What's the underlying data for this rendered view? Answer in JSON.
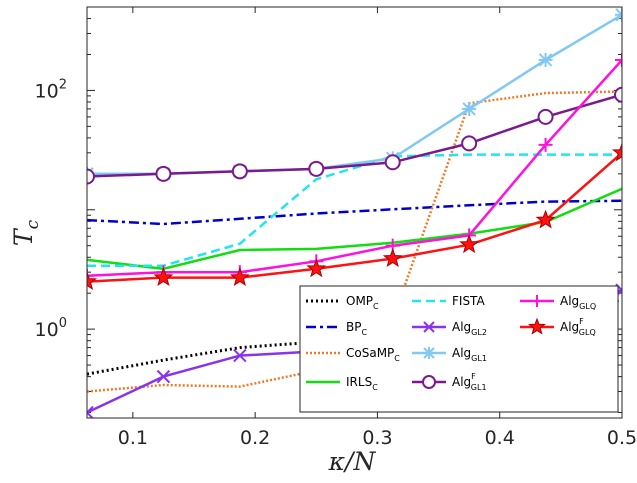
{
  "chart_data": {
    "type": "line",
    "xlabel": "κ/N",
    "ylabel": "T",
    "ylabel_sub": "c",
    "yscale": "log",
    "xlim": [
      0.0625,
      0.5
    ],
    "ylim": [
      0.18,
      500
    ],
    "x": [
      0.0625,
      0.125,
      0.1875,
      0.25,
      0.3125,
      0.375,
      0.4375,
      0.5
    ],
    "xticks": [
      0.1,
      0.2,
      0.3,
      0.4,
      0.5
    ],
    "xtick_labels": [
      "0.1",
      "0.2",
      "0.3",
      "0.4",
      "0.5"
    ],
    "yticks": [
      1,
      100
    ],
    "ytick_labels": [
      {
        "base": "10",
        "exp": "0"
      },
      {
        "base": "10",
        "exp": "2"
      }
    ],
    "grid": false,
    "legend": {
      "placement": "bottom-right",
      "columns": 3
    },
    "series": [
      {
        "name": "OMP",
        "sub": "C",
        "sup": "",
        "color": "#000000",
        "dash": "2,3",
        "width": 3,
        "marker": "none",
        "values": [
          0.42,
          0.55,
          0.7,
          0.78,
          0.95,
          1.15,
          1.45,
          1.75
        ]
      },
      {
        "name": "BP",
        "sub": "C",
        "sup": "",
        "color": "#0000cc",
        "dash": "10,4,3,4",
        "width": 2.5,
        "marker": "none",
        "values": [
          8.2,
          7.6,
          8.4,
          9.3,
          10.1,
          10.9,
          11.7,
          11.9
        ]
      },
      {
        "name": "CoSaMP",
        "sub": "C",
        "sup": "",
        "color": "#ee7b22",
        "dash": "2,2",
        "width": 2.5,
        "marker": "none",
        "values": [
          0.3,
          0.34,
          0.33,
          0.45,
          1.2,
          78,
          95,
          98
        ]
      },
      {
        "name": "IRLS",
        "sub": "C",
        "sup": "",
        "color": "#11dd11",
        "dash": "",
        "width": 2.5,
        "marker": "none",
        "values": [
          3.8,
          3.2,
          4.6,
          4.7,
          5.3,
          6.3,
          7.9,
          15
        ]
      },
      {
        "name": "FISTA",
        "sub": "",
        "sup": "",
        "color": "#22e5ee",
        "dash": "9,5",
        "width": 2.5,
        "marker": "none",
        "values": [
          3.4,
          3.4,
          5.2,
          18,
          28,
          29,
          29,
          29
        ]
      },
      {
        "name": "Alg",
        "sub": "GL2",
        "sup": "",
        "color": "#8833ee",
        "dash": "",
        "width": 2.5,
        "marker": "x",
        "values": [
          0.2,
          0.4,
          0.6,
          0.65,
          0.92,
          1.32,
          1.65,
          2.12
        ]
      },
      {
        "name": "Alg",
        "sub": "GL1",
        "sup": "",
        "color": "#82c8f5",
        "dash": "",
        "width": 2.5,
        "marker": "asterisk",
        "values": [
          20,
          20,
          21,
          22,
          27,
          70,
          180,
          430
        ]
      },
      {
        "name": "Alg",
        "sub": "GL1",
        "sup": "F",
        "color": "#7a1a8e",
        "dash": "",
        "width": 2.5,
        "marker": "circle",
        "values": [
          19,
          20,
          21,
          22,
          25,
          36,
          60,
          92
        ]
      },
      {
        "name": "Alg",
        "sub": "GLQ",
        "sup": "",
        "color": "#ff11dd",
        "dash": "",
        "width": 2.5,
        "marker": "plus",
        "values": [
          2.8,
          3.0,
          3.0,
          3.7,
          5.0,
          6.1,
          35,
          180
        ]
      },
      {
        "name": "Alg",
        "sub": "GLQ",
        "sup": "F",
        "color": "#ff1111",
        "dash": "",
        "width": 2.5,
        "marker": "star",
        "values": [
          2.5,
          2.7,
          2.7,
          3.2,
          3.9,
          5.1,
          8.2,
          30
        ]
      }
    ]
  }
}
